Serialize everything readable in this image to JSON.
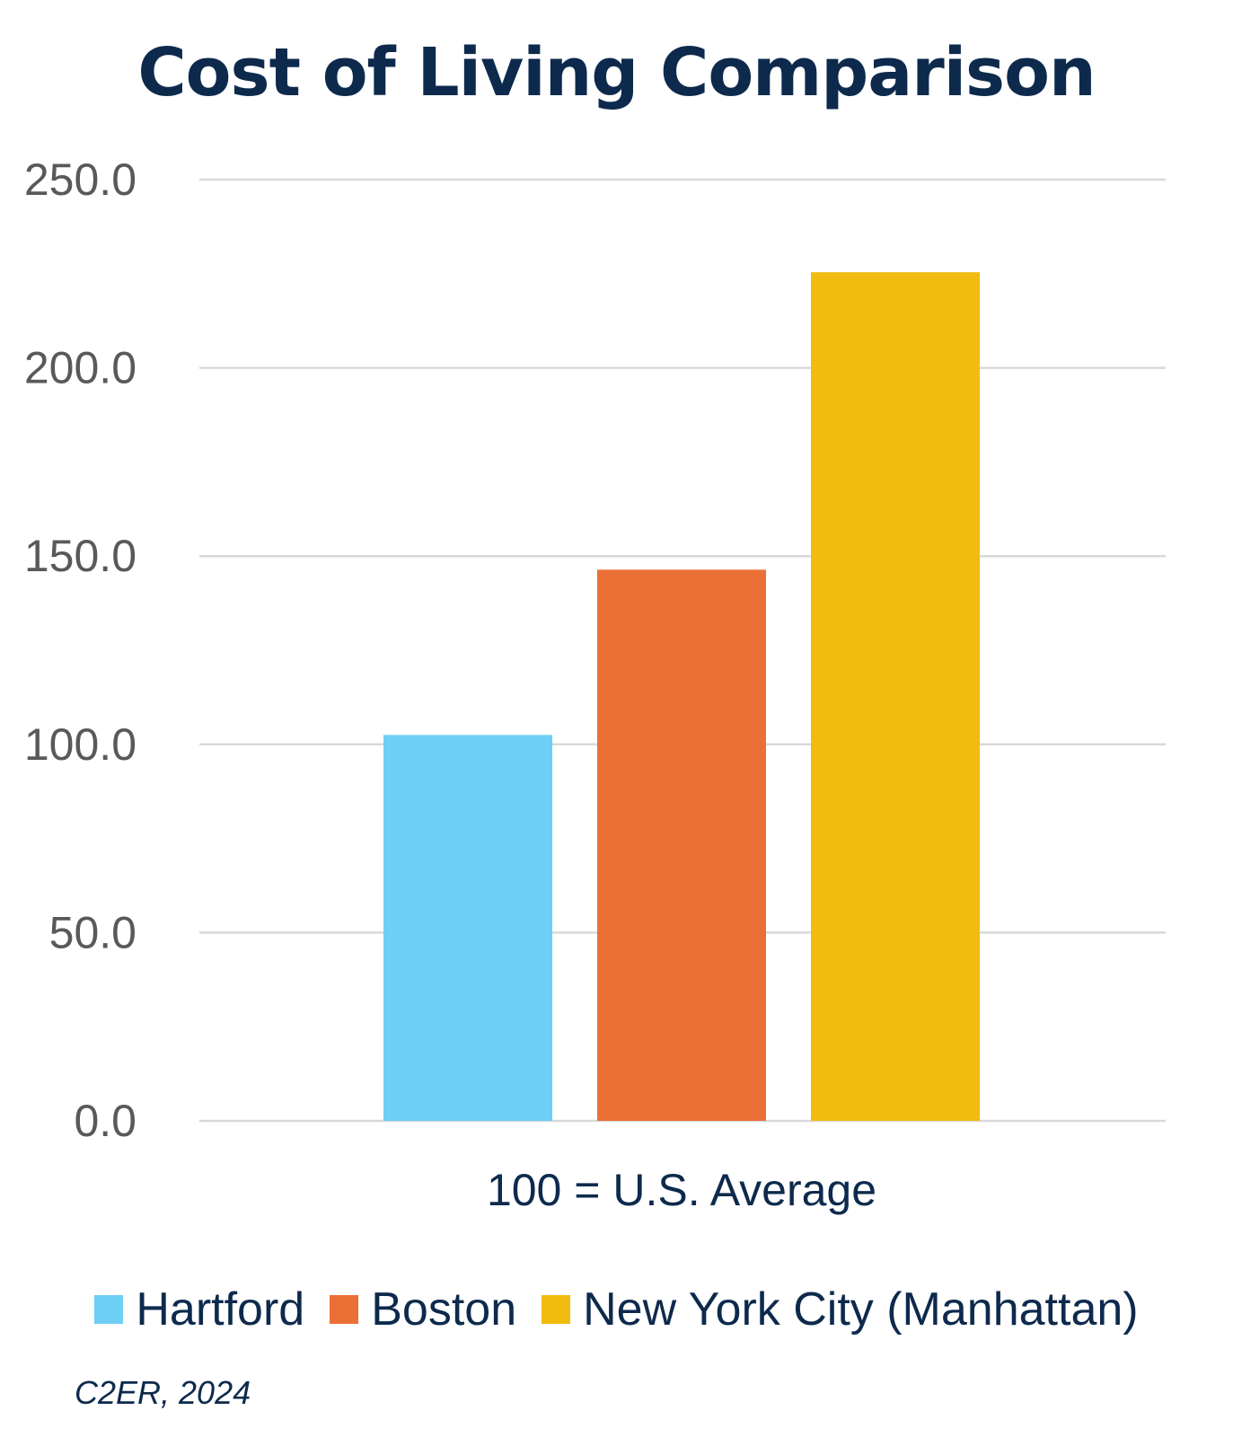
{
  "chart_data": {
    "type": "bar",
    "title": "Cost of Living Comparison",
    "categories": [
      "100 = U.S. Average"
    ],
    "series": [
      {
        "name": "Hartford",
        "values": [
          102.5
        ],
        "color": "#6dcff6"
      },
      {
        "name": "Boston",
        "values": [
          146.4
        ],
        "color": "#eb7036"
      },
      {
        "name": "New York City (Manhattan)",
        "values": [
          225.4
        ],
        "color": "#f1bb10"
      }
    ],
    "ylim": [
      0,
      250
    ],
    "yticks": [
      "0.0",
      "50.0",
      "100.0",
      "150.0",
      "200.0",
      "250.0"
    ],
    "grid": true,
    "legend_position": "bottom"
  },
  "source": "C2ER, 2024"
}
